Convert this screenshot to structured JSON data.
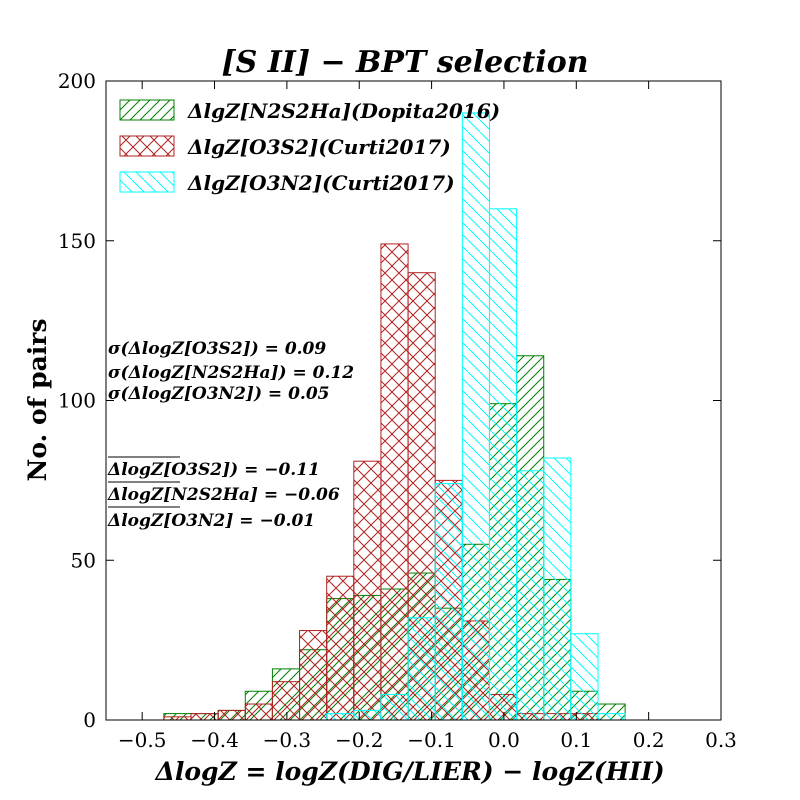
{
  "chart_data": {
    "type": "histogram",
    "title": "[S II] − BPT selection",
    "xlabel": "ΔlogZ = logZ(DIG/LIER) − logZ(HII)",
    "ylabel": "No. of pairs",
    "xlim": [
      -0.55,
      0.3
    ],
    "ylim": [
      0,
      200
    ],
    "xticks": [
      "−0.5",
      "−0.4",
      "−0.3",
      "−0.2",
      "−0.1",
      "0.0",
      "0.1",
      "0.2",
      "0.3"
    ],
    "xtick_values": [
      -0.5,
      -0.4,
      -0.3,
      -0.2,
      -0.1,
      0.0,
      0.1,
      0.2,
      0.3
    ],
    "yticks": [
      "0",
      "50",
      "100",
      "150",
      "200"
    ],
    "ytick_values": [
      0,
      50,
      100,
      150,
      200
    ],
    "series": [
      {
        "name": "ΔlgZ[N2S2Ha](Dopita2016)",
        "color": "#008000",
        "hatch": "diagonal",
        "bin_edges": [
          -0.47,
          -0.4325,
          -0.395,
          -0.3575,
          -0.32,
          -0.2825,
          -0.245,
          -0.2075,
          -0.17,
          -0.1325,
          -0.095,
          -0.0575,
          -0.02,
          0.0175,
          0.055,
          0.0925,
          0.13,
          0.1675
        ],
        "counts": [
          2,
          2,
          3,
          9,
          16,
          22,
          38,
          39,
          41,
          46,
          35,
          55,
          99,
          114,
          44,
          9,
          5
        ]
      },
      {
        "name": "ΔlgZ[O3S2](Curti2017)",
        "color": "#b22222",
        "hatch": "cross",
        "bin_edges": [
          -0.47,
          -0.4325,
          -0.395,
          -0.3575,
          -0.32,
          -0.2825,
          -0.245,
          -0.2075,
          -0.17,
          -0.1325,
          -0.095,
          -0.0575,
          -0.02,
          0.0175,
          0.055,
          0.0925,
          0.13
        ],
        "counts": [
          1,
          2,
          3,
          5,
          12,
          28,
          45,
          81,
          149,
          140,
          75,
          31,
          8,
          2,
          2,
          2
        ]
      },
      {
        "name": "ΔlgZ[O3N2](Curti2017)",
        "color": "#00ffff",
        "hatch": "backdiagonal",
        "bin_edges": [
          -0.245,
          -0.2075,
          -0.17,
          -0.1325,
          -0.095,
          -0.0575,
          -0.02,
          0.0175,
          0.055,
          0.0925,
          0.13,
          0.1675
        ],
        "counts": [
          2,
          3,
          8,
          32,
          74,
          190,
          160,
          78,
          82,
          27,
          2
        ]
      }
    ],
    "annotations": [
      "σ(ΔlogZ[O3S2]) = 0.09",
      "σ(ΔlogZ[N2S2Ha]) = 0.12",
      "σ(ΔlogZ[O3N2]) = 0.05",
      "ΔlogZ[O3S2]) = −0.11",
      "ΔlogZ[N2S2Ha] = −0.06",
      "ΔlogZ[O3N2] = −0.01"
    ]
  }
}
